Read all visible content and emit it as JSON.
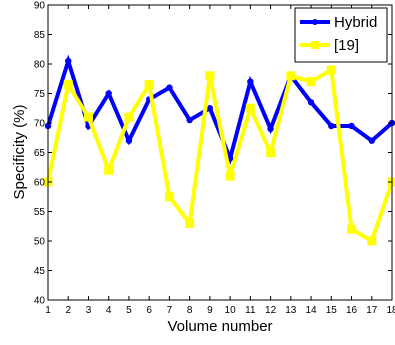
{
  "chart_data": {
    "type": "line",
    "xlabel": "Volume number",
    "ylabel": "Specificity (%)",
    "xlim": [
      1,
      18
    ],
    "ylim": [
      40,
      90
    ],
    "x": [
      1,
      2,
      3,
      4,
      5,
      6,
      7,
      8,
      9,
      10,
      11,
      12,
      13,
      14,
      15,
      16,
      17,
      18
    ],
    "xticks": [
      "1",
      "2",
      "3",
      "4",
      "5",
      "6",
      "7",
      "8",
      "9",
      "10",
      "11",
      "12",
      "13",
      "14",
      "15",
      "16",
      "17",
      "18"
    ],
    "yticks": [
      "40",
      "45",
      "50",
      "55",
      "60",
      "65",
      "70",
      "75",
      "80",
      "85",
      "90"
    ],
    "grid": false,
    "legend_position": "top-right",
    "series": [
      {
        "name": "Hybrid",
        "color": "#0000ff",
        "marker": "circle",
        "values": [
          69.5,
          80.5,
          69.5,
          75.0,
          67.0,
          74.0,
          76.0,
          70.5,
          72.5,
          64.0,
          77.0,
          69.0,
          78.0,
          73.5,
          69.5,
          69.5,
          67.0,
          70.0
        ]
      },
      {
        "name": "[19]",
        "color": "#ffff00",
        "marker": "square",
        "values": [
          60.0,
          76.5,
          71.0,
          62.0,
          71.0,
          76.5,
          57.5,
          53.0,
          78.0,
          61.0,
          72.5,
          65.0,
          78.0,
          77.0,
          79.0,
          52.0,
          50.0,
          60.0
        ]
      }
    ]
  }
}
